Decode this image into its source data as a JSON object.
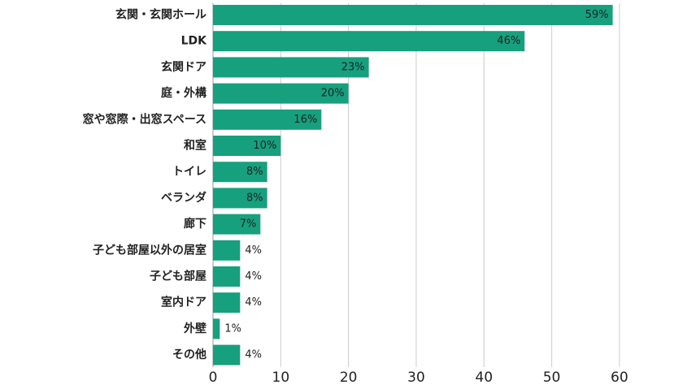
{
  "chart_data": {
    "type": "bar",
    "orientation": "horizontal",
    "categories": [
      "玄関・玄関ホール",
      "LDK",
      "玄関ドア",
      "庭・外構",
      "窓や窓際・出窓スペース",
      "和室",
      "トイレ",
      "ベランダ",
      "廊下",
      "子ども部屋以外の居室",
      "子ども部屋",
      "室内ドア",
      "外壁",
      "その他"
    ],
    "values": [
      59,
      46,
      23,
      20,
      16,
      10,
      8,
      8,
      7,
      4,
      4,
      4,
      1,
      4
    ],
    "value_labels": [
      "59%",
      "46%",
      "23%",
      "20%",
      "16%",
      "10%",
      "8%",
      "8%",
      "7%",
      "4%",
      "4%",
      "4%",
      "1%",
      "4%"
    ],
    "title": "",
    "xlabel": "",
    "ylabel": "",
    "xlim": [
      0,
      60
    ],
    "x_ticks": [
      0,
      10,
      20,
      30,
      40,
      50,
      60
    ],
    "x_tick_labels": [
      "0",
      "10",
      "20",
      "30",
      "40",
      "50",
      "60"
    ],
    "grid": "vertical",
    "legend": "none",
    "colors": {
      "bar": "#16a07e",
      "grid": "#cccccc",
      "text": "#222222"
    }
  }
}
